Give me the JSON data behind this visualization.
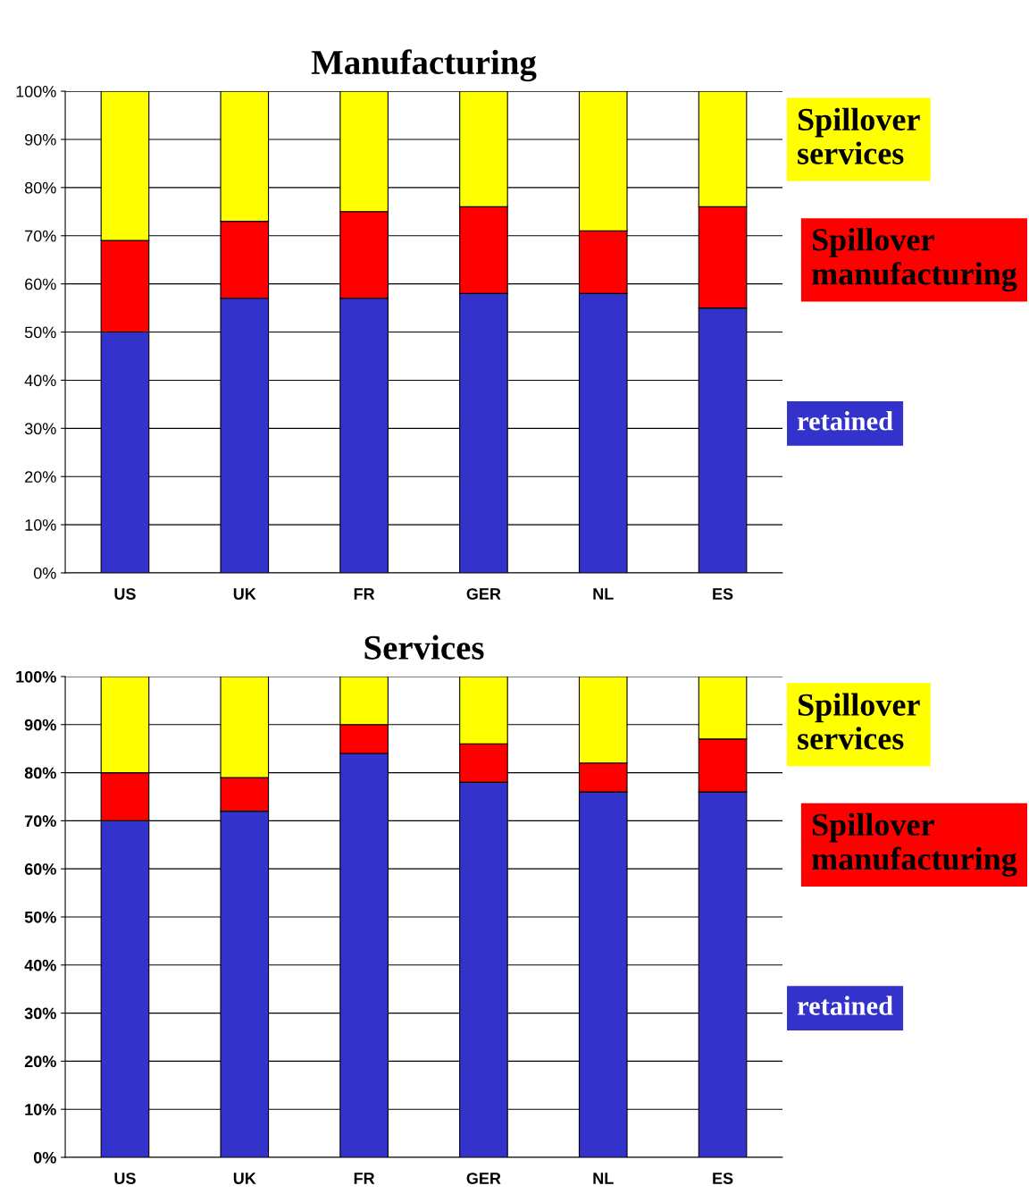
{
  "chart_data": [
    {
      "type": "bar",
      "title": "Manufacturing",
      "categories": [
        "US",
        "UK",
        "FR",
        "GER",
        "NL",
        "ES"
      ],
      "stacked": true,
      "ylim": [
        0,
        100
      ],
      "yticks": [
        {
          "value": 0,
          "label": "0%"
        },
        {
          "value": 10,
          "label": "10%"
        },
        {
          "value": 20,
          "label": "20%"
        },
        {
          "value": 30,
          "label": "30%"
        },
        {
          "value": 40,
          "label": "40%"
        },
        {
          "value": 50,
          "label": "50%"
        },
        {
          "value": 60,
          "label": "60%"
        },
        {
          "value": 70,
          "label": "70%"
        },
        {
          "value": 80,
          "label": "80%"
        },
        {
          "value": 90,
          "label": "90%"
        },
        {
          "value": 100,
          "label": "100%"
        }
      ],
      "grid": "y",
      "legend": "right",
      "series": [
        {
          "name": "retained",
          "color": "#3333cc",
          "values": [
            50,
            57,
            57,
            58,
            58,
            55
          ]
        },
        {
          "name": "Spillover manufacturing",
          "color": "#ff0000",
          "values": [
            19,
            16,
            18,
            18,
            13,
            21
          ]
        },
        {
          "name": "Spillover services",
          "color": "#ffff00",
          "values": [
            31,
            27,
            25,
            24,
            29,
            24
          ]
        }
      ]
    },
    {
      "type": "bar",
      "title": "Services",
      "categories": [
        "US",
        "UK",
        "FR",
        "GER",
        "NL",
        "ES"
      ],
      "stacked": true,
      "ylim": [
        0,
        100
      ],
      "yticks": [
        {
          "value": 0,
          "label": "0%"
        },
        {
          "value": 10,
          "label": "10%"
        },
        {
          "value": 20,
          "label": "20%"
        },
        {
          "value": 30,
          "label": "30%"
        },
        {
          "value": 40,
          "label": "40%"
        },
        {
          "value": 50,
          "label": "50%"
        },
        {
          "value": 60,
          "label": "60%"
        },
        {
          "value": 70,
          "label": "70%"
        },
        {
          "value": 80,
          "label": "80%"
        },
        {
          "value": 90,
          "label": "90%"
        },
        {
          "value": 100,
          "label": "100%"
        }
      ],
      "grid": "y",
      "legend": "right",
      "series": [
        {
          "name": "retained",
          "color": "#3333cc",
          "values": [
            70,
            72,
            84,
            78,
            76,
            76
          ]
        },
        {
          "name": "Spillover manufacturing",
          "color": "#ff0000",
          "values": [
            10,
            7,
            6,
            8,
            6,
            11
          ]
        },
        {
          "name": "Spillover services",
          "color": "#ffff00",
          "values": [
            20,
            21,
            10,
            14,
            18,
            13
          ]
        }
      ]
    }
  ]
}
